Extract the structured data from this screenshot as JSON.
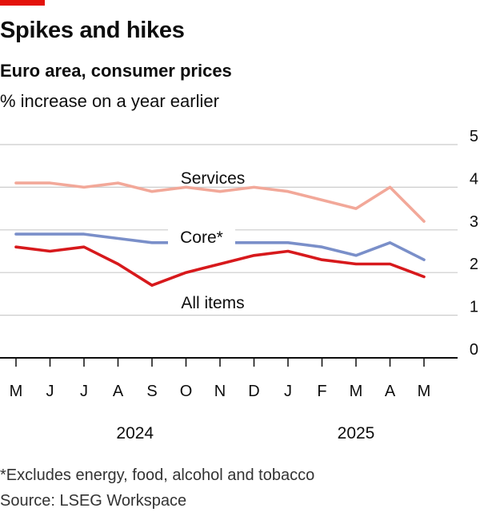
{
  "header": {
    "title": "Spikes and hikes",
    "subtitle": "Euro area, consumer prices",
    "unit": "% increase on a year earlier"
  },
  "footer": {
    "footnote": "*Excludes energy, food, alcohol and tobacco",
    "source": "Source: LSEG Workspace"
  },
  "colors": {
    "all_items": "#d7191c",
    "core": "#7a8fc9",
    "services": "#f2a899",
    "grid": "#cccccc",
    "axis": "#0d0d0d",
    "brand": "#e3120b"
  },
  "chart_data": {
    "type": "line",
    "title": "Spikes and hikes",
    "subtitle": "Euro area, consumer prices",
    "ylabel": "% increase on a year earlier",
    "x": [
      "M",
      "J",
      "J",
      "A",
      "S",
      "O",
      "N",
      "D",
      "J",
      "F",
      "M",
      "A",
      "M"
    ],
    "year_labels": [
      {
        "label": "2024",
        "index": 3.5
      },
      {
        "label": "2025",
        "index": 10
      }
    ],
    "ylim": [
      0,
      5
    ],
    "yticks": [
      "0",
      "1",
      "2",
      "3",
      "4",
      "5"
    ],
    "grid": true,
    "series": [
      {
        "name": "Services",
        "key": "services",
        "values": [
          4.1,
          4.1,
          4.0,
          4.1,
          3.9,
          4.0,
          3.9,
          4.0,
          3.9,
          3.7,
          3.5,
          4.0,
          3.2
        ]
      },
      {
        "name": "Core*",
        "key": "core",
        "values": [
          2.9,
          2.9,
          2.9,
          2.8,
          2.7,
          2.7,
          2.7,
          2.7,
          2.7,
          2.6,
          2.4,
          2.7,
          2.3
        ]
      },
      {
        "name": "All items",
        "key": "all_items",
        "values": [
          2.6,
          2.5,
          2.6,
          2.2,
          1.7,
          2.0,
          2.2,
          2.4,
          2.5,
          2.3,
          2.2,
          2.2,
          1.9
        ]
      }
    ]
  }
}
